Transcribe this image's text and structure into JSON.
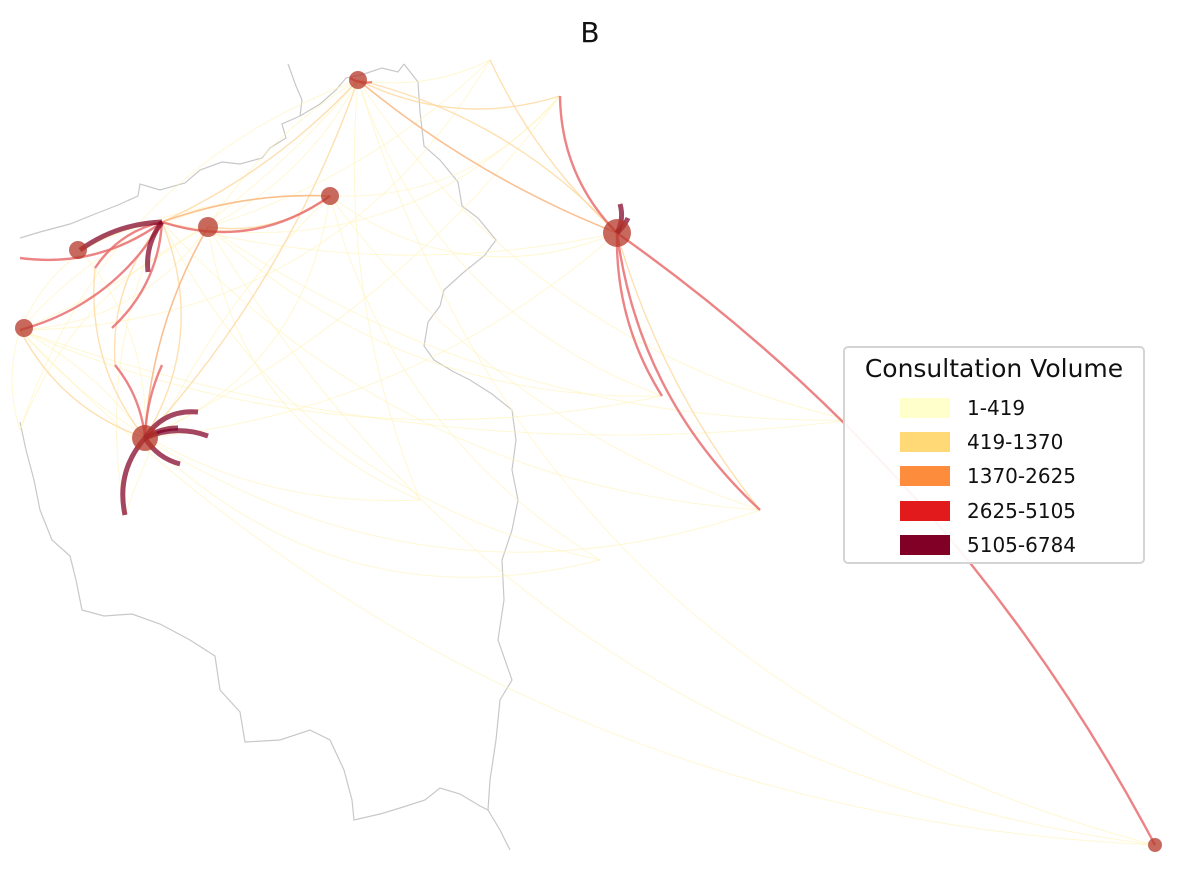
{
  "title": "B",
  "legend": {
    "title": "Consultation Volume",
    "items": [
      {
        "label": "1-419",
        "color": "#ffffcc"
      },
      {
        "label": "419-1370",
        "color": "#fed976"
      },
      {
        "label": "1370-2625",
        "color": "#fd8d3c"
      },
      {
        "label": "2625-5105",
        "color": "#e31a1c"
      },
      {
        "label": "5105-6784",
        "color": "#800026"
      }
    ]
  },
  "node_color": "#b5372a",
  "border_color": "#c8c8c8",
  "map_description_icon": "region-flow-map"
}
